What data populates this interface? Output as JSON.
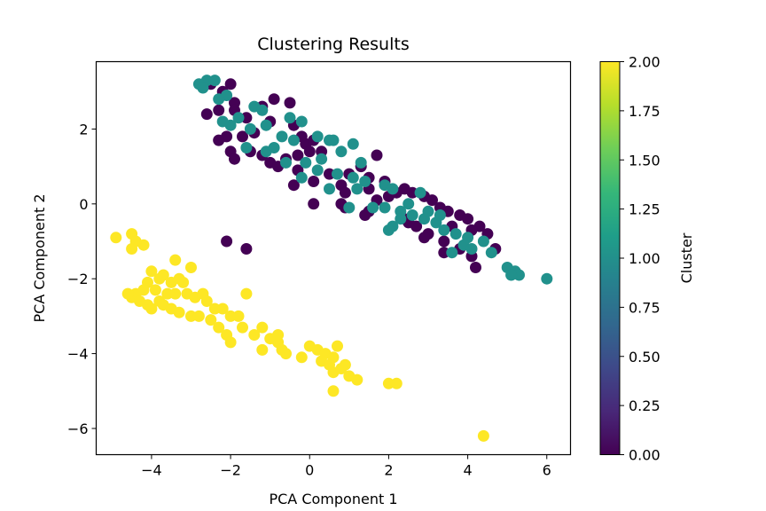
{
  "chart_data": {
    "type": "scatter",
    "title": "Clustering Results",
    "xlabel": "PCA Component 1",
    "ylabel": "PCA Component 2",
    "xlim": [
      -5.4,
      6.6
    ],
    "ylim": [
      -6.7,
      3.8
    ],
    "xticks": [
      -4,
      -2,
      0,
      2,
      4,
      6
    ],
    "yticks": [
      -6,
      -4,
      -2,
      0,
      2
    ],
    "xtick_labels": [
      "−4",
      "−2",
      "0",
      "2",
      "4",
      "6"
    ],
    "ytick_labels": [
      "−6",
      "−4",
      "−2",
      "0",
      "2"
    ],
    "grid": false,
    "colorbar": {
      "label": "Cluster",
      "range": [
        0.0,
        2.0
      ],
      "colormap": "viridis",
      "ticks": [
        0.0,
        0.25,
        0.5,
        0.75,
        1.0,
        1.25,
        1.5,
        1.75,
        2.0
      ],
      "tick_labels": [
        "0.00",
        "0.25",
        "0.50",
        "0.75",
        "1.00",
        "1.25",
        "1.50",
        "1.75",
        "2.00"
      ],
      "colors": [
        "#440154",
        "#482878",
        "#3e4989",
        "#31688e",
        "#26828e",
        "#1f9e89",
        "#35b779",
        "#6ece58",
        "#b5de2b",
        "#fde725"
      ]
    },
    "cluster_colors": {
      "0": "#440154",
      "1": "#21918c",
      "2": "#fde725"
    },
    "series": [
      {
        "cluster": 0,
        "points": [
          [
            -2.5,
            3.2
          ],
          [
            -2.2,
            3.0
          ],
          [
            -2.0,
            3.2
          ],
          [
            -1.9,
            2.7
          ],
          [
            -2.6,
            2.4
          ],
          [
            -2.3,
            2.5
          ],
          [
            -1.9,
            2.5
          ],
          [
            -1.6,
            2.3
          ],
          [
            -1.2,
            2.6
          ],
          [
            -0.9,
            2.8
          ],
          [
            -0.5,
            2.7
          ],
          [
            -0.4,
            2.1
          ],
          [
            -1.0,
            2.2
          ],
          [
            -1.4,
            1.9
          ],
          [
            -1.7,
            1.8
          ],
          [
            -2.1,
            1.8
          ],
          [
            -2.3,
            1.7
          ],
          [
            -2.0,
            1.4
          ],
          [
            -1.9,
            1.2
          ],
          [
            -1.5,
            1.4
          ],
          [
            -1.2,
            1.3
          ],
          [
            -1.0,
            1.1
          ],
          [
            -0.8,
            1.0
          ],
          [
            -0.6,
            1.2
          ],
          [
            -0.3,
            1.3
          ],
          [
            -0.1,
            1.6
          ],
          [
            0.1,
            1.7
          ],
          [
            0.3,
            1.4
          ],
          [
            0.0,
            1.4
          ],
          [
            -0.3,
            0.9
          ],
          [
            -0.4,
            0.5
          ],
          [
            0.1,
            0.6
          ],
          [
            0.5,
            0.8
          ],
          [
            0.8,
            0.5
          ],
          [
            1.0,
            0.8
          ],
          [
            1.3,
            1.0
          ],
          [
            1.7,
            1.3
          ],
          [
            1.5,
            0.7
          ],
          [
            1.9,
            0.6
          ],
          [
            2.2,
            0.3
          ],
          [
            1.7,
            0.1
          ],
          [
            2.0,
            0.2
          ],
          [
            2.4,
            0.4
          ],
          [
            2.6,
            0.3
          ],
          [
            2.9,
            0.2
          ],
          [
            3.1,
            0.1
          ],
          [
            3.3,
            -0.1
          ],
          [
            3.5,
            -0.2
          ],
          [
            3.8,
            -0.3
          ],
          [
            4.0,
            -0.4
          ],
          [
            4.3,
            -0.6
          ],
          [
            4.5,
            -0.8
          ],
          [
            4.7,
            -1.2
          ],
          [
            4.1,
            -1.4
          ],
          [
            3.8,
            -1.2
          ],
          [
            3.4,
            -1.0
          ],
          [
            3.0,
            -0.8
          ],
          [
            2.7,
            -0.6
          ],
          [
            2.5,
            -0.5
          ],
          [
            0.9,
            -0.1
          ],
          [
            1.5,
            -0.2
          ],
          [
            1.4,
            -0.3
          ],
          [
            0.8,
            0.0
          ],
          [
            0.1,
            0.0
          ],
          [
            1.5,
            0.4
          ],
          [
            -2.1,
            -1.0
          ],
          [
            -1.6,
            -1.2
          ],
          [
            4.2,
            -1.7
          ],
          [
            3.4,
            -1.3
          ],
          [
            2.9,
            -0.9
          ],
          [
            3.6,
            -0.6
          ],
          [
            4.1,
            -0.7
          ],
          [
            2.4,
            -0.4
          ],
          [
            -0.2,
            1.8
          ],
          [
            0.9,
            0.3
          ]
        ]
      },
      {
        "cluster": 1,
        "points": [
          [
            -2.6,
            3.3
          ],
          [
            -2.4,
            3.3
          ],
          [
            -2.8,
            3.2
          ],
          [
            -2.1,
            2.9
          ],
          [
            -2.3,
            2.8
          ],
          [
            -1.4,
            2.6
          ],
          [
            -1.2,
            2.5
          ],
          [
            -0.5,
            2.3
          ],
          [
            -0.2,
            2.2
          ],
          [
            -1.8,
            2.3
          ],
          [
            -2.0,
            2.1
          ],
          [
            -1.5,
            2.0
          ],
          [
            -1.1,
            2.1
          ],
          [
            -0.7,
            1.8
          ],
          [
            -0.4,
            1.7
          ],
          [
            0.2,
            1.8
          ],
          [
            0.5,
            1.7
          ],
          [
            0.6,
            1.7
          ],
          [
            1.1,
            1.6
          ],
          [
            -1.6,
            1.5
          ],
          [
            -1.1,
            1.4
          ],
          [
            -0.6,
            1.1
          ],
          [
            -0.1,
            1.1
          ],
          [
            0.3,
            1.2
          ],
          [
            0.8,
            1.4
          ],
          [
            1.3,
            1.1
          ],
          [
            0.7,
            0.8
          ],
          [
            1.1,
            0.7
          ],
          [
            1.4,
            0.6
          ],
          [
            1.9,
            0.5
          ],
          [
            2.1,
            0.4
          ],
          [
            2.8,
            0.3
          ],
          [
            0.5,
            0.4
          ],
          [
            1.2,
            0.4
          ],
          [
            -0.2,
            0.7
          ],
          [
            1.0,
            -0.1
          ],
          [
            1.9,
            -0.1
          ],
          [
            2.3,
            -0.2
          ],
          [
            2.6,
            -0.3
          ],
          [
            2.9,
            -0.4
          ],
          [
            3.2,
            -0.5
          ],
          [
            3.4,
            -0.7
          ],
          [
            3.7,
            -0.8
          ],
          [
            4.0,
            -0.9
          ],
          [
            4.4,
            -1.0
          ],
          [
            4.6,
            -1.3
          ],
          [
            3.9,
            -1.1
          ],
          [
            3.6,
            -1.3
          ],
          [
            4.1,
            -1.2
          ],
          [
            5.0,
            -1.7
          ],
          [
            5.2,
            -1.8
          ],
          [
            5.3,
            -1.9
          ],
          [
            5.1,
            -1.9
          ],
          [
            6.0,
            -2.0
          ],
          [
            2.1,
            -0.6
          ],
          [
            2.0,
            -0.7
          ],
          [
            2.3,
            -0.4
          ],
          [
            3.0,
            -0.2
          ],
          [
            1.6,
            -0.1
          ],
          [
            2.5,
            0.0
          ],
          [
            -2.7,
            3.1
          ],
          [
            -2.2,
            2.2
          ],
          [
            -0.9,
            1.5
          ],
          [
            0.2,
            0.9
          ],
          [
            3.3,
            -0.3
          ]
        ]
      },
      {
        "cluster": 2,
        "points": [
          [
            -4.9,
            -0.9
          ],
          [
            -4.5,
            -0.8
          ],
          [
            -4.2,
            -1.1
          ],
          [
            -4.4,
            -1.0
          ],
          [
            -4.5,
            -1.2
          ],
          [
            -3.4,
            -1.5
          ],
          [
            -3.0,
            -1.7
          ],
          [
            -4.0,
            -1.8
          ],
          [
            -3.7,
            -1.9
          ],
          [
            -3.8,
            -2.0
          ],
          [
            -4.1,
            -2.1
          ],
          [
            -3.5,
            -2.1
          ],
          [
            -3.2,
            -2.1
          ],
          [
            -4.2,
            -2.3
          ],
          [
            -3.9,
            -2.3
          ],
          [
            -3.6,
            -2.4
          ],
          [
            -4.4,
            -2.4
          ],
          [
            -4.5,
            -2.5
          ],
          [
            -3.8,
            -2.6
          ],
          [
            -4.3,
            -2.6
          ],
          [
            -4.1,
            -2.7
          ],
          [
            -4.0,
            -2.8
          ],
          [
            -3.7,
            -2.7
          ],
          [
            -3.4,
            -2.4
          ],
          [
            -3.1,
            -2.4
          ],
          [
            -2.9,
            -2.5
          ],
          [
            -2.6,
            -2.6
          ],
          [
            -2.4,
            -2.8
          ],
          [
            -3.5,
            -2.8
          ],
          [
            -3.3,
            -2.9
          ],
          [
            -3.0,
            -3.0
          ],
          [
            -2.8,
            -3.0
          ],
          [
            -2.5,
            -3.1
          ],
          [
            -2.2,
            -2.8
          ],
          [
            -2.0,
            -3.0
          ],
          [
            -1.6,
            -2.4
          ],
          [
            -2.3,
            -3.3
          ],
          [
            -2.1,
            -3.5
          ],
          [
            -2.0,
            -3.7
          ],
          [
            -1.7,
            -3.3
          ],
          [
            -1.4,
            -3.5
          ],
          [
            -1.2,
            -3.3
          ],
          [
            -1.0,
            -3.6
          ],
          [
            -0.8,
            -3.7
          ],
          [
            -0.7,
            -3.9
          ],
          [
            -0.6,
            -4.0
          ],
          [
            -1.2,
            -3.9
          ],
          [
            -0.8,
            -3.5
          ],
          [
            -0.2,
            -4.1
          ],
          [
            0.0,
            -3.8
          ],
          [
            0.2,
            -3.9
          ],
          [
            0.4,
            -4.0
          ],
          [
            0.3,
            -4.2
          ],
          [
            0.5,
            -4.3
          ],
          [
            0.6,
            -4.1
          ],
          [
            0.7,
            -3.8
          ],
          [
            0.9,
            -4.3
          ],
          [
            1.0,
            -4.6
          ],
          [
            1.2,
            -4.7
          ],
          [
            0.6,
            -4.5
          ],
          [
            0.6,
            -5.0
          ],
          [
            2.0,
            -4.8
          ],
          [
            2.2,
            -4.8
          ],
          [
            4.4,
            -6.2
          ],
          [
            -3.3,
            -2.0
          ],
          [
            -2.7,
            -2.4
          ],
          [
            -1.8,
            -3.0
          ],
          [
            -0.9,
            -3.6
          ],
          [
            0.8,
            -4.4
          ],
          [
            -4.6,
            -2.4
          ]
        ]
      }
    ]
  }
}
